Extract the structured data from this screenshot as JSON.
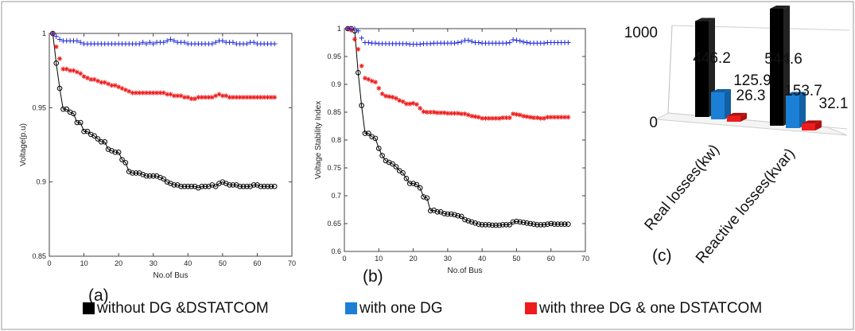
{
  "colors": {
    "base": "#000000",
    "one_dg": "#1f2bd6",
    "three_dg": "#ee1c1c",
    "bar_blue": "#1b7fd6",
    "bar_red": "#ee1c1c",
    "bar_black": "#000000"
  },
  "legend": {
    "items": [
      {
        "label": "without DG &DSTATCOM",
        "color": "#000000"
      },
      {
        "label": "with one DG",
        "color": "#1b7fd6"
      },
      {
        "label": "with three DG & one DSTATCOM",
        "color": "#ee1c1c"
      }
    ]
  },
  "labels": {
    "a": "(a)",
    "b": "(b)",
    "c": "(c)"
  },
  "chart_data": [
    {
      "type": "line",
      "xlabel": "No.of Bus",
      "ylabel": "Voltage(p.u)",
      "xlim": [
        0,
        70
      ],
      "ylim": [
        0.85,
        1.0
      ],
      "xticks": [
        0,
        10,
        20,
        30,
        40,
        50,
        60,
        70
      ],
      "yticks": [
        0.85,
        0.9,
        0.95,
        1
      ],
      "ytick_labels": [
        "0.85",
        "0.9",
        "0.95",
        "1"
      ],
      "x": [
        1,
        2,
        3,
        4,
        5,
        6,
        7,
        8,
        9,
        10,
        11,
        12,
        13,
        14,
        15,
        16,
        17,
        18,
        19,
        20,
        21,
        22,
        23,
        24,
        25,
        26,
        27,
        28,
        29,
        30,
        31,
        32,
        33,
        34,
        35,
        36,
        37,
        38,
        39,
        40,
        41,
        42,
        43,
        44,
        45,
        46,
        47,
        48,
        49,
        50,
        51,
        52,
        53,
        54,
        55,
        56,
        57,
        58,
        59,
        60,
        61,
        62,
        63,
        64,
        65
      ],
      "series": [
        {
          "marker": "circle",
          "color": "#000000",
          "values": [
            1.0,
            0.98,
            0.963,
            0.949,
            0.949,
            0.947,
            0.946,
            0.94,
            0.94,
            0.934,
            0.934,
            0.932,
            0.931,
            0.929,
            0.927,
            0.927,
            0.922,
            0.921,
            0.92,
            0.92,
            0.915,
            0.913,
            0.907,
            0.906,
            0.906,
            0.906,
            0.905,
            0.904,
            0.904,
            0.904,
            0.904,
            0.903,
            0.902,
            0.9,
            0.899,
            0.898,
            0.898,
            0.897,
            0.897,
            0.897,
            0.897,
            0.897,
            0.896,
            0.897,
            0.897,
            0.897,
            0.898,
            0.897,
            0.899,
            0.9,
            0.899,
            0.898,
            0.898,
            0.898,
            0.897,
            0.897,
            0.897,
            0.897,
            0.898,
            0.898,
            0.897,
            0.897,
            0.897,
            0.897,
            0.897
          ]
        },
        {
          "marker": "star",
          "color": "#ee1c1c",
          "values": [
            1.0,
            0.991,
            0.983,
            0.976,
            0.976,
            0.975,
            0.975,
            0.974,
            0.973,
            0.971,
            0.97,
            0.969,
            0.969,
            0.968,
            0.967,
            0.967,
            0.966,
            0.965,
            0.965,
            0.964,
            0.963,
            0.962,
            0.961,
            0.96,
            0.96,
            0.96,
            0.96,
            0.96,
            0.96,
            0.96,
            0.96,
            0.96,
            0.96,
            0.959,
            0.959,
            0.958,
            0.958,
            0.958,
            0.957,
            0.957,
            0.956,
            0.956,
            0.957,
            0.957,
            0.957,
            0.957,
            0.957,
            0.958,
            0.959,
            0.958,
            0.958,
            0.957,
            0.957,
            0.957,
            0.957,
            0.957,
            0.957,
            0.957,
            0.957,
            0.957,
            0.957,
            0.957,
            0.957,
            0.957,
            0.957
          ]
        },
        {
          "marker": "plus",
          "color": "#1f2bd6",
          "values": [
            1.0,
            0.998,
            0.996,
            0.995,
            0.995,
            0.995,
            0.995,
            0.995,
            0.994,
            0.993,
            0.993,
            0.993,
            0.993,
            0.993,
            0.993,
            0.993,
            0.993,
            0.993,
            0.993,
            0.993,
            0.993,
            0.993,
            0.993,
            0.993,
            0.993,
            0.993,
            0.994,
            0.993,
            0.994,
            0.993,
            0.994,
            0.994,
            0.994,
            0.995,
            0.996,
            0.995,
            0.994,
            0.994,
            0.994,
            0.993,
            0.993,
            0.993,
            0.993,
            0.993,
            0.993,
            0.993,
            0.993,
            0.994,
            0.995,
            0.995,
            0.994,
            0.994,
            0.994,
            0.993,
            0.993,
            0.993,
            0.993,
            0.994,
            0.994,
            0.993,
            0.993,
            0.993,
            0.993,
            0.993,
            0.993
          ]
        }
      ]
    },
    {
      "type": "line",
      "xlabel": "No.of Bus",
      "ylabel": "Voltage Stability Index",
      "xlim": [
        0,
        70
      ],
      "ylim": [
        0.6,
        1.0
      ],
      "xticks": [
        0,
        10,
        20,
        30,
        40,
        50,
        60,
        70
      ],
      "yticks": [
        0.6,
        0.65,
        0.7,
        0.75,
        0.8,
        0.85,
        0.9,
        0.95,
        1
      ],
      "ytick_labels": [
        "0.6",
        "0.65",
        "0.7",
        "0.75",
        "0.8",
        "0.85",
        "0.9",
        "0.95",
        "1"
      ],
      "x": [
        1,
        2,
        3,
        4,
        5,
        6,
        7,
        8,
        9,
        10,
        11,
        12,
        13,
        14,
        15,
        16,
        17,
        18,
        19,
        20,
        21,
        22,
        23,
        24,
        25,
        26,
        27,
        28,
        29,
        30,
        31,
        32,
        33,
        34,
        35,
        36,
        37,
        38,
        39,
        40,
        41,
        42,
        43,
        44,
        45,
        46,
        47,
        48,
        49,
        50,
        51,
        52,
        53,
        54,
        55,
        56,
        57,
        58,
        59,
        60,
        61,
        62,
        63,
        64,
        65
      ],
      "series": [
        {
          "marker": "circle",
          "color": "#000000",
          "values": [
            1.0,
            1.0,
            0.996,
            0.921,
            0.862,
            0.812,
            0.812,
            0.806,
            0.803,
            0.785,
            0.772,
            0.763,
            0.76,
            0.757,
            0.752,
            0.745,
            0.741,
            0.731,
            0.722,
            0.722,
            0.72,
            0.714,
            0.698,
            0.696,
            0.673,
            0.674,
            0.671,
            0.671,
            0.668,
            0.667,
            0.667,
            0.666,
            0.664,
            0.663,
            0.657,
            0.655,
            0.653,
            0.651,
            0.649,
            0.648,
            0.648,
            0.648,
            0.647,
            0.647,
            0.647,
            0.648,
            0.648,
            0.648,
            0.653,
            0.654,
            0.653,
            0.652,
            0.651,
            0.65,
            0.649,
            0.648,
            0.648,
            0.648,
            0.649,
            0.65,
            0.649,
            0.649,
            0.649,
            0.649,
            0.649
          ]
        },
        {
          "marker": "star",
          "color": "#ee1c1c",
          "values": [
            1.0,
            0.997,
            0.981,
            0.963,
            0.933,
            0.911,
            0.909,
            0.906,
            0.904,
            0.893,
            0.883,
            0.879,
            0.878,
            0.877,
            0.875,
            0.871,
            0.869,
            0.865,
            0.865,
            0.866,
            0.864,
            0.857,
            0.851,
            0.85,
            0.85,
            0.85,
            0.849,
            0.849,
            0.849,
            0.848,
            0.848,
            0.848,
            0.848,
            0.847,
            0.847,
            0.845,
            0.843,
            0.842,
            0.841,
            0.839,
            0.839,
            0.839,
            0.839,
            0.839,
            0.839,
            0.84,
            0.84,
            0.84,
            0.847,
            0.846,
            0.845,
            0.843,
            0.842,
            0.841,
            0.84,
            0.84,
            0.839,
            0.839,
            0.841,
            0.841,
            0.841,
            0.841,
            0.841,
            0.841,
            0.841
          ]
        },
        {
          "marker": "plus",
          "color": "#1f2bd6",
          "values": [
            1.0,
            1.0,
            1.0,
            0.996,
            0.983,
            0.975,
            0.975,
            0.974,
            0.974,
            0.973,
            0.973,
            0.973,
            0.973,
            0.973,
            0.973,
            0.973,
            0.973,
            0.973,
            0.972,
            0.972,
            0.972,
            0.972,
            0.973,
            0.973,
            0.973,
            0.974,
            0.974,
            0.974,
            0.974,
            0.974,
            0.974,
            0.974,
            0.975,
            0.976,
            0.979,
            0.979,
            0.977,
            0.975,
            0.975,
            0.974,
            0.974,
            0.974,
            0.974,
            0.974,
            0.974,
            0.974,
            0.974,
            0.975,
            0.98,
            0.979,
            0.978,
            0.976,
            0.975,
            0.974,
            0.974,
            0.974,
            0.974,
            0.974,
            0.975,
            0.975,
            0.975,
            0.975,
            0.975,
            0.975,
            0.975
          ]
        }
      ]
    },
    {
      "type": "bar",
      "variant": "3d-clustered",
      "categories": [
        "Real losses(kw)",
        "Reactive losses(kvar)"
      ],
      "ylim": [
        0,
        1000
      ],
      "yticks": [
        0,
        1000
      ],
      "ytick_labels": [
        "0",
        "1000"
      ],
      "series": [
        {
          "color": "#000000",
          "values": [
            446.2,
            544.6
          ],
          "labels": [
            "446.2",
            "544.6"
          ]
        },
        {
          "color": "#1b7fd6",
          "values": [
            125.9,
            153.7
          ],
          "labels": [
            "125.9",
            "153.7"
          ]
        },
        {
          "color": "#ee1c1c",
          "values": [
            26.3,
            32.1
          ],
          "labels": [
            "26.3",
            "32.1"
          ]
        }
      ]
    }
  ]
}
